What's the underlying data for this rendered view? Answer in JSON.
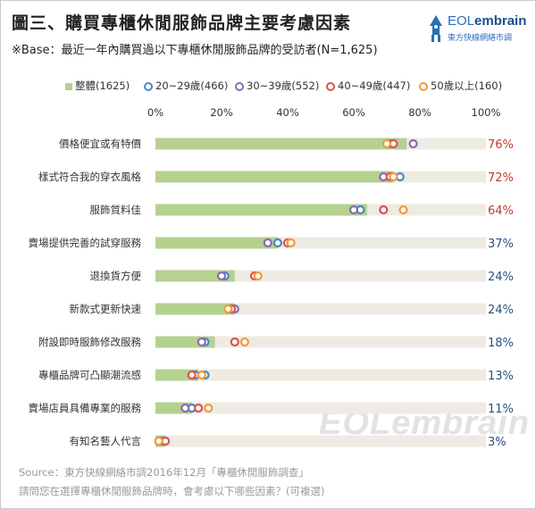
{
  "header": {
    "title": "圖三、購買專櫃休閒服飾品牌主要考慮因素",
    "subtitle": "※Base：最近一年內購買過以下專櫃休閒服飾品牌的受訪者(N=1,625)"
  },
  "logo": {
    "prefix": "EOL",
    "brand": "embrain",
    "name_zh": "東方快線網絡市調"
  },
  "watermark": "EOLembrain",
  "colors": {
    "overall": "#b5d190",
    "track": "#eeebe2",
    "s20": "#4a86c8",
    "s30": "#8a6bb0",
    "s40": "#d9544f",
    "s50": "#f09a3c",
    "pct_high": "#c0392b",
    "pct_low": "#2a4f86"
  },
  "chart_data": {
    "type": "bar",
    "title": "圖三、購買專櫃休閒服飾品牌主要考慮因素",
    "xlim": [
      0,
      100
    ],
    "xticks": [
      "0%",
      "20%",
      "40%",
      "60%",
      "80%",
      "100%"
    ],
    "legend_position": "top",
    "categories": [
      "價格便宜或有特價",
      "樣式符合我的穿衣風格",
      "服飾質料佳",
      "賣場提供完善的試穿服務",
      "退換貨方便",
      "新款式更新快速",
      "附設即時服飾修改服務",
      "專櫃品牌可凸顯潮流感",
      "賣場店員具備專業的服務",
      "有知名藝人代言"
    ],
    "value_labels": [
      "76%",
      "72%",
      "64%",
      "37%",
      "24%",
      "24%",
      "18%",
      "13%",
      "11%",
      "3%"
    ],
    "series": [
      {
        "name": "整體(1625)",
        "kind": "bar",
        "values": [
          76,
          72,
          64,
          37,
          24,
          24,
          18,
          13,
          11,
          3
        ]
      },
      {
        "name": "20~29歲(466)",
        "kind": "marker",
        "values": [
          71,
          74,
          62,
          37,
          21,
          23,
          15,
          15,
          11,
          2
        ]
      },
      {
        "name": "30~39歲(552)",
        "kind": "marker",
        "values": [
          78,
          69,
          60,
          34,
          20,
          24,
          14,
          12,
          9,
          1
        ]
      },
      {
        "name": "40~49歲(447)",
        "kind": "marker",
        "values": [
          72,
          71,
          69,
          40,
          30,
          23,
          24,
          11,
          13,
          3
        ]
      },
      {
        "name": "50歲以上(160)",
        "kind": "marker",
        "values": [
          70,
          72,
          75,
          41,
          31,
          22,
          27,
          14,
          16,
          1
        ]
      }
    ]
  },
  "footer": {
    "source": "Source：東方快線網絡市調2016年12月「專櫃休閒服飾調查」",
    "note": "請問您在選擇專櫃休閒服飾品牌時，會考慮以下哪些因素？(可複選)"
  }
}
